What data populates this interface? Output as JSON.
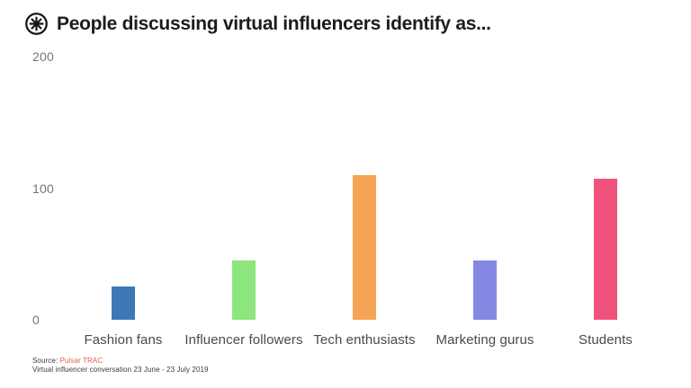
{
  "header": {
    "icon": "pulsar-asterisk-icon",
    "title": "People discussing virtual influencers identify as..."
  },
  "chart_data": {
    "type": "bar",
    "title": "People discussing virtual influencers identify as...",
    "categories": [
      "Fashion fans",
      "Influencer followers",
      "Tech enthusiasts",
      "Marketing gurus",
      "Students"
    ],
    "values": [
      25,
      45,
      110,
      45,
      107
    ],
    "colors": [
      "#3d78b5",
      "#8de57d",
      "#f6a455",
      "#8588e2",
      "#ef527a"
    ],
    "xlabel": "",
    "ylabel": "",
    "ylim": [
      0,
      200
    ],
    "yticks": [
      0,
      100,
      200
    ],
    "grid": false,
    "legend": false
  },
  "footer": {
    "source_label": "Source:",
    "source_link": "Pulsar TRAC",
    "note": "Virtual influencer conversation 23 June - 23 July 2019"
  },
  "colors": {
    "title": "#1c1c1c",
    "tick_label": "#757575",
    "category_label": "#4a4a4a",
    "source_link": "#e5604b"
  }
}
